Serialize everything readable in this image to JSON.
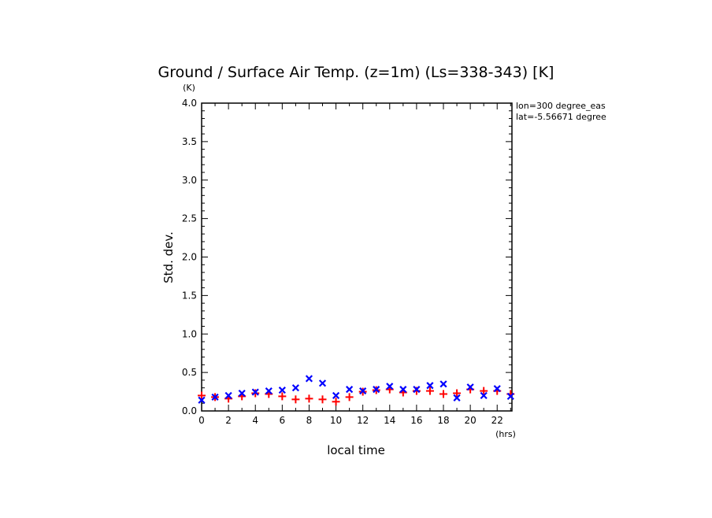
{
  "chart_data": {
    "type": "scatter",
    "title": "Ground / Surface Air Temp. (z=1m) (Ls=338-343) [K]",
    "xlabel": "local time",
    "ylabel": "Std. dev.",
    "x_unit": "(hrs)",
    "y_unit": "(K)",
    "xlim": [
      0,
      23
    ],
    "ylim": [
      0,
      4.0
    ],
    "xticks": [
      0,
      2,
      4,
      6,
      8,
      10,
      12,
      14,
      16,
      18,
      20,
      22
    ],
    "yticks": [
      "0.0",
      "0.5",
      "1.0",
      "1.5",
      "2.0",
      "2.5",
      "3.0",
      "3.5",
      "4.0"
    ],
    "grid": false,
    "annotations": [
      "lon=300 degree_eas",
      "lat=-5.56671 degree"
    ],
    "x": [
      0,
      1,
      2,
      3,
      4,
      5,
      6,
      7,
      8,
      9,
      10,
      11,
      12,
      13,
      14,
      15,
      16,
      17,
      18,
      19,
      20,
      21,
      22,
      23
    ],
    "series": [
      {
        "marker": "plus",
        "color": "#ff0000",
        "values": [
          0.2,
          0.18,
          0.16,
          0.19,
          0.23,
          0.22,
          0.19,
          0.15,
          0.16,
          0.15,
          0.12,
          0.18,
          0.25,
          0.27,
          0.28,
          0.24,
          0.26,
          0.26,
          0.22,
          0.23,
          0.28,
          0.26,
          0.26,
          0.22
        ]
      },
      {
        "marker": "cross",
        "color": "#0000ff",
        "values": [
          0.14,
          0.18,
          0.2,
          0.23,
          0.245,
          0.26,
          0.27,
          0.3,
          0.42,
          0.36,
          0.2,
          0.28,
          0.26,
          0.28,
          0.32,
          0.28,
          0.28,
          0.33,
          0.35,
          0.17,
          0.31,
          0.2,
          0.29,
          0.19
        ]
      }
    ]
  }
}
